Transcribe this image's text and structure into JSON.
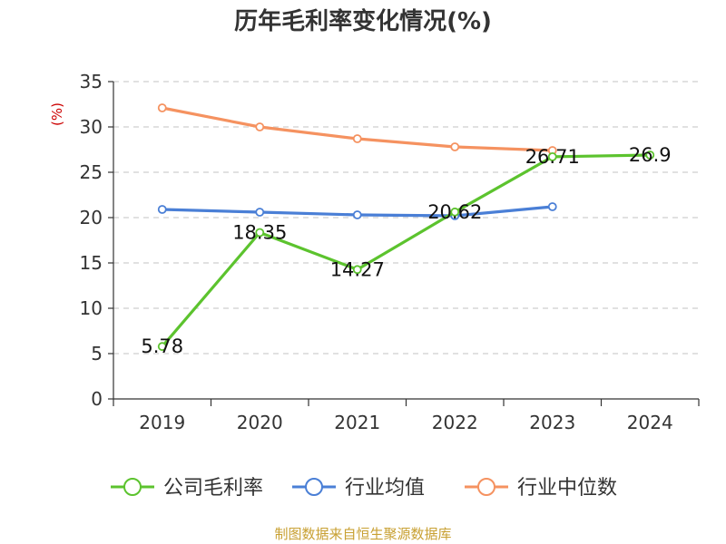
{
  "chart_data": {
    "type": "line",
    "title": "历年毛利率变化情况(%)",
    "ylabel": "(%)",
    "categories": [
      "2019",
      "2020",
      "2021",
      "2022",
      "2023",
      "2024"
    ],
    "ylim": [
      0,
      35
    ],
    "yticks": [
      0,
      5,
      10,
      15,
      20,
      25,
      30,
      35
    ],
    "grid": true,
    "legend_position": "bottom",
    "series": [
      {
        "name": "公司毛利率",
        "color": "#5cc32e",
        "labeled": true,
        "values": [
          5.78,
          18.35,
          14.27,
          20.62,
          26.71,
          26.9
        ],
        "labels": [
          "5.78",
          "18.35",
          "14.27",
          "20.62",
          "26.71",
          "26.9"
        ]
      },
      {
        "name": "行业均值",
        "color": "#4a7fd6",
        "labeled": false,
        "values": [
          20.9,
          20.6,
          20.3,
          20.2,
          21.2,
          null
        ]
      },
      {
        "name": "行业中位数",
        "color": "#f59260",
        "labeled": false,
        "values": [
          32.1,
          30.0,
          28.7,
          27.8,
          27.4,
          null
        ]
      }
    ]
  },
  "source": "制图数据来自恒生聚源数据库"
}
